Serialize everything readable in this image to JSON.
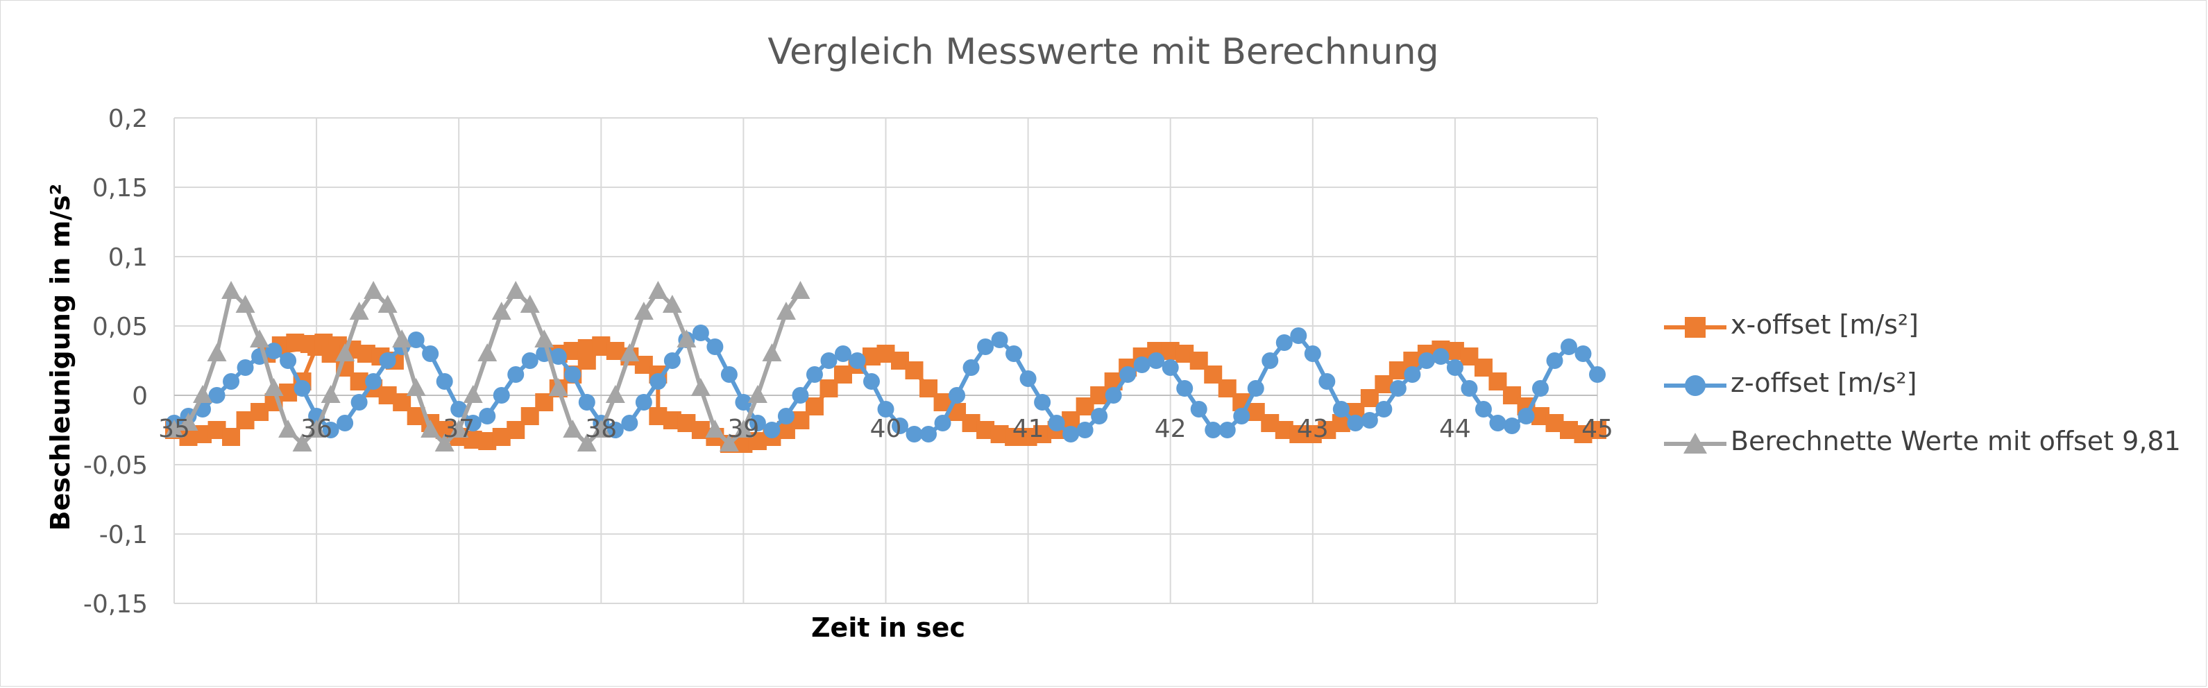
{
  "colors": {
    "series_x": "#ED7D31",
    "series_z": "#5B9BD5",
    "series_calc": "#A5A5A5",
    "gridline": "#d9d9d9",
    "text": "#595959",
    "axis_title": "#000000"
  },
  "chart_data": {
    "type": "line",
    "title": "Vergleich Messwerte mit Berechnung",
    "xlabel": "Zeit in sec",
    "ylabel": "Beschleunigung in m/s²",
    "xlim": [
      35,
      45
    ],
    "ylim": [
      -0.15,
      0.2
    ],
    "x_ticks": [
      35,
      36,
      37,
      38,
      39,
      40,
      41,
      42,
      43,
      44,
      45
    ],
    "x_tick_labels": [
      "35",
      "36",
      "37",
      "38",
      "39",
      "40",
      "41",
      "42",
      "43",
      "44",
      "45"
    ],
    "y_ticks": [
      0.2,
      0.15,
      0.1,
      0.05,
      0,
      -0.05,
      -0.1,
      -0.15
    ],
    "y_tick_labels": [
      "0,2",
      "0,15",
      "0,1",
      "0,05",
      "0",
      "-0,05",
      "-0,1",
      "-0,15"
    ],
    "grid": true,
    "legend_position": "right",
    "series": [
      {
        "name": "x-offset [m/s²]",
        "marker": "square",
        "points": [
          [
            35.0,
            -0.025
          ],
          [
            35.1,
            -0.03
          ],
          [
            35.2,
            -0.028
          ],
          [
            35.3,
            -0.025
          ],
          [
            35.4,
            -0.03
          ],
          [
            35.5,
            -0.018
          ],
          [
            35.6,
            -0.012
          ],
          [
            35.7,
            -0.005
          ],
          [
            35.8,
            0.002
          ],
          [
            35.9,
            0.01
          ],
          [
            36.0,
            0.035
          ],
          [
            35.65,
            0.03
          ],
          [
            35.75,
            0.036
          ],
          [
            35.85,
            0.038
          ],
          [
            35.95,
            0.037
          ],
          [
            36.05,
            0.038
          ],
          [
            36.15,
            0.036
          ],
          [
            36.25,
            0.033
          ],
          [
            36.35,
            0.03
          ],
          [
            36.45,
            0.028
          ],
          [
            36.55,
            0.025
          ],
          [
            36.1,
            0.03
          ],
          [
            36.2,
            0.02
          ],
          [
            36.3,
            0.01
          ],
          [
            36.4,
            0.005
          ],
          [
            36.5,
            0.0
          ],
          [
            36.6,
            -0.005
          ],
          [
            36.7,
            -0.015
          ],
          [
            36.8,
            -0.02
          ],
          [
            36.9,
            -0.025
          ],
          [
            37.0,
            -0.03
          ],
          [
            37.1,
            -0.032
          ],
          [
            37.2,
            -0.033
          ],
          [
            37.3,
            -0.03
          ],
          [
            37.4,
            -0.025
          ],
          [
            37.5,
            -0.015
          ],
          [
            37.6,
            -0.005
          ],
          [
            37.7,
            0.005
          ],
          [
            37.8,
            0.015
          ],
          [
            37.9,
            0.025
          ],
          [
            38.0,
            0.035
          ],
          [
            37.7,
            0.03
          ],
          [
            37.8,
            0.032
          ],
          [
            37.9,
            0.034
          ],
          [
            38.0,
            0.036
          ],
          [
            38.1,
            0.032
          ],
          [
            38.2,
            0.028
          ],
          [
            38.3,
            0.022
          ],
          [
            38.4,
            0.015
          ],
          [
            38.4,
            -0.015
          ],
          [
            38.5,
            -0.018
          ],
          [
            38.6,
            -0.02
          ],
          [
            38.7,
            -0.025
          ],
          [
            38.8,
            -0.03
          ],
          [
            38.9,
            -0.035
          ],
          [
            39.0,
            -0.035
          ],
          [
            39.1,
            -0.033
          ],
          [
            39.2,
            -0.03
          ],
          [
            39.3,
            -0.025
          ],
          [
            39.4,
            -0.018
          ],
          [
            39.5,
            -0.008
          ],
          [
            39.6,
            0.005
          ],
          [
            39.7,
            0.015
          ],
          [
            39.8,
            0.022
          ],
          [
            39.9,
            0.028
          ],
          [
            40.0,
            0.03
          ],
          [
            40.1,
            0.025
          ],
          [
            40.2,
            0.018
          ],
          [
            40.3,
            0.005
          ],
          [
            40.4,
            -0.005
          ],
          [
            40.5,
            -0.012
          ],
          [
            40.6,
            -0.02
          ],
          [
            40.7,
            -0.025
          ],
          [
            40.8,
            -0.028
          ],
          [
            40.9,
            -0.03
          ],
          [
            41.0,
            -0.03
          ],
          [
            41.1,
            -0.028
          ],
          [
            41.2,
            -0.025
          ],
          [
            41.3,
            -0.018
          ],
          [
            41.4,
            -0.008
          ],
          [
            41.5,
            0.0
          ],
          [
            41.6,
            0.01
          ],
          [
            41.7,
            0.02
          ],
          [
            41.8,
            0.028
          ],
          [
            41.9,
            0.032
          ],
          [
            42.0,
            0.032
          ],
          [
            42.1,
            0.03
          ],
          [
            42.2,
            0.025
          ],
          [
            42.3,
            0.015
          ],
          [
            42.4,
            0.005
          ],
          [
            42.5,
            -0.005
          ],
          [
            42.6,
            -0.012
          ],
          [
            42.7,
            -0.02
          ],
          [
            42.8,
            -0.025
          ],
          [
            42.9,
            -0.028
          ],
          [
            43.0,
            -0.028
          ],
          [
            43.1,
            -0.025
          ],
          [
            43.2,
            -0.02
          ],
          [
            43.3,
            -0.012
          ],
          [
            43.4,
            -0.002
          ],
          [
            43.5,
            0.008
          ],
          [
            43.6,
            0.018
          ],
          [
            43.7,
            0.025
          ],
          [
            43.8,
            0.03
          ],
          [
            43.9,
            0.033
          ],
          [
            44.0,
            0.032
          ],
          [
            44.1,
            0.028
          ],
          [
            44.2,
            0.02
          ],
          [
            44.3,
            0.01
          ],
          [
            44.4,
            0.0
          ],
          [
            44.5,
            -0.008
          ],
          [
            44.6,
            -0.015
          ],
          [
            44.7,
            -0.02
          ],
          [
            44.8,
            -0.025
          ],
          [
            44.9,
            -0.028
          ],
          [
            45.0,
            -0.025
          ]
        ]
      },
      {
        "name": "z-offset [m/s²]",
        "marker": "circle",
        "points": [
          [
            35.0,
            -0.02
          ],
          [
            35.1,
            -0.015
          ],
          [
            35.2,
            -0.01
          ],
          [
            35.3,
            0.0
          ],
          [
            35.4,
            0.01
          ],
          [
            35.5,
            0.02
          ],
          [
            35.6,
            0.028
          ],
          [
            35.7,
            0.032
          ],
          [
            35.8,
            0.025
          ],
          [
            35.9,
            0.005
          ],
          [
            36.0,
            -0.015
          ],
          [
            36.1,
            -0.025
          ],
          [
            36.2,
            -0.02
          ],
          [
            36.3,
            -0.005
          ],
          [
            36.4,
            0.01
          ],
          [
            36.5,
            0.025
          ],
          [
            36.6,
            0.035
          ],
          [
            36.7,
            0.04
          ],
          [
            36.8,
            0.03
          ],
          [
            36.9,
            0.01
          ],
          [
            37.0,
            -0.01
          ],
          [
            37.1,
            -0.02
          ],
          [
            37.2,
            -0.015
          ],
          [
            37.3,
            0.0
          ],
          [
            37.4,
            0.015
          ],
          [
            37.5,
            0.025
          ],
          [
            37.6,
            0.03
          ],
          [
            37.7,
            0.028
          ],
          [
            37.8,
            0.015
          ],
          [
            37.9,
            -0.005
          ],
          [
            38.0,
            -0.02
          ],
          [
            38.1,
            -0.025
          ],
          [
            38.2,
            -0.02
          ],
          [
            38.3,
            -0.005
          ],
          [
            38.4,
            0.01
          ],
          [
            38.5,
            0.025
          ],
          [
            38.6,
            0.04
          ],
          [
            38.7,
            0.045
          ],
          [
            38.8,
            0.035
          ],
          [
            38.9,
            0.015
          ],
          [
            39.0,
            -0.005
          ],
          [
            39.1,
            -0.02
          ],
          [
            39.2,
            -0.025
          ],
          [
            39.3,
            -0.015
          ],
          [
            39.4,
            0.0
          ],
          [
            39.5,
            0.015
          ],
          [
            39.6,
            0.025
          ],
          [
            39.7,
            0.03
          ],
          [
            39.8,
            0.025
          ],
          [
            39.9,
            0.01
          ],
          [
            40.0,
            -0.01
          ],
          [
            40.1,
            -0.022
          ],
          [
            40.2,
            -0.028
          ],
          [
            40.3,
            -0.028
          ],
          [
            40.4,
            -0.02
          ],
          [
            40.5,
            0.0
          ],
          [
            40.6,
            0.02
          ],
          [
            40.7,
            0.035
          ],
          [
            40.8,
            0.04
          ],
          [
            40.9,
            0.03
          ],
          [
            41.0,
            0.012
          ],
          [
            41.1,
            -0.005
          ],
          [
            41.2,
            -0.02
          ],
          [
            41.3,
            -0.028
          ],
          [
            41.4,
            -0.025
          ],
          [
            41.5,
            -0.015
          ],
          [
            41.6,
            0.0
          ],
          [
            41.7,
            0.015
          ],
          [
            41.8,
            0.022
          ],
          [
            41.9,
            0.025
          ],
          [
            42.0,
            0.02
          ],
          [
            42.1,
            0.005
          ],
          [
            42.2,
            -0.01
          ],
          [
            42.3,
            -0.025
          ],
          [
            42.4,
            -0.025
          ],
          [
            42.5,
            -0.015
          ],
          [
            42.6,
            0.005
          ],
          [
            42.7,
            0.025
          ],
          [
            42.8,
            0.038
          ],
          [
            42.9,
            0.043
          ],
          [
            43.0,
            0.03
          ],
          [
            43.1,
            0.01
          ],
          [
            43.2,
            -0.01
          ],
          [
            43.3,
            -0.02
          ],
          [
            43.4,
            -0.018
          ],
          [
            43.5,
            -0.01
          ],
          [
            43.6,
            0.005
          ],
          [
            43.7,
            0.015
          ],
          [
            43.8,
            0.025
          ],
          [
            43.9,
            0.028
          ],
          [
            44.0,
            0.02
          ],
          [
            44.1,
            0.005
          ],
          [
            44.2,
            -0.01
          ],
          [
            44.3,
            -0.02
          ],
          [
            44.4,
            -0.022
          ],
          [
            44.5,
            -0.015
          ],
          [
            44.6,
            0.005
          ],
          [
            44.7,
            0.025
          ],
          [
            44.8,
            0.035
          ],
          [
            44.9,
            0.03
          ],
          [
            45.0,
            0.015
          ]
        ]
      },
      {
        "name": "Berechnette Werte mit offset 9,81",
        "marker": "triangle",
        "points": [
          [
            35.0,
            -0.025
          ],
          [
            35.1,
            -0.02
          ],
          [
            35.2,
            0.0
          ],
          [
            35.3,
            0.03
          ],
          [
            35.4,
            0.075
          ],
          [
            35.5,
            0.065
          ],
          [
            35.6,
            0.04
          ],
          [
            35.7,
            0.005
          ],
          [
            35.8,
            -0.025
          ],
          [
            35.9,
            -0.035
          ],
          [
            36.0,
            -0.025
          ],
          [
            36.1,
            0.0
          ],
          [
            36.2,
            0.03
          ],
          [
            36.3,
            0.06
          ],
          [
            36.4,
            0.075
          ],
          [
            36.5,
            0.065
          ],
          [
            36.6,
            0.04
          ],
          [
            36.7,
            0.005
          ],
          [
            36.8,
            -0.025
          ],
          [
            36.9,
            -0.035
          ],
          [
            37.0,
            -0.025
          ],
          [
            37.1,
            0.0
          ],
          [
            37.2,
            0.03
          ],
          [
            37.3,
            0.06
          ],
          [
            37.4,
            0.075
          ],
          [
            37.5,
            0.065
          ],
          [
            37.6,
            0.04
          ],
          [
            37.7,
            0.005
          ],
          [
            37.8,
            -0.025
          ],
          [
            37.9,
            -0.035
          ],
          [
            38.0,
            -0.025
          ],
          [
            38.1,
            0.0
          ],
          [
            38.2,
            0.03
          ],
          [
            38.3,
            0.06
          ],
          [
            38.4,
            0.075
          ],
          [
            38.5,
            0.065
          ],
          [
            38.6,
            0.04
          ],
          [
            38.7,
            0.005
          ],
          [
            38.8,
            -0.025
          ],
          [
            38.9,
            -0.035
          ],
          [
            39.0,
            -0.025
          ],
          [
            39.1,
            0.0
          ],
          [
            39.2,
            0.03
          ],
          [
            39.3,
            0.06
          ],
          [
            39.4,
            0.075
          ]
        ]
      }
    ]
  }
}
